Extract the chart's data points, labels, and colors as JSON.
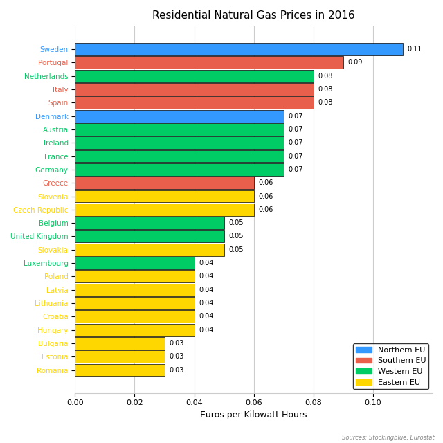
{
  "title": "Residential Natural Gas Prices in 2016",
  "xlabel": "Euros per Kilowatt Hours",
  "source": "Sources: Stockingblue, Eurostat",
  "countries": [
    "Sweden",
    "Portugal",
    "Netherlands",
    "Italy",
    "Spain",
    "Denmark",
    "Austria",
    "Ireland",
    "France",
    "Germany",
    "Greece",
    "Slovenia",
    "Czech Republic",
    "Belgium",
    "United Kingdom",
    "Slovakia",
    "Luxembourg",
    "Poland",
    "Latvia",
    "Lithuania",
    "Croatia",
    "Hungary",
    "Bulgaria",
    "Estonia",
    "Romania"
  ],
  "values": [
    0.11,
    0.09,
    0.08,
    0.08,
    0.08,
    0.07,
    0.07,
    0.07,
    0.07,
    0.07,
    0.06,
    0.06,
    0.06,
    0.05,
    0.05,
    0.05,
    0.04,
    0.04,
    0.04,
    0.04,
    0.04,
    0.04,
    0.03,
    0.03,
    0.03
  ],
  "colors": [
    "#3399FF",
    "#E8604C",
    "#00CC66",
    "#E8604C",
    "#E8604C",
    "#3399FF",
    "#00CC66",
    "#00CC66",
    "#00CC66",
    "#00CC66",
    "#E8604C",
    "#FFD700",
    "#FFD700",
    "#00CC66",
    "#00CC66",
    "#FFD700",
    "#00CC66",
    "#FFD700",
    "#FFD700",
    "#FFD700",
    "#FFD700",
    "#FFD700",
    "#FFD700",
    "#FFD700",
    "#FFD700"
  ],
  "label_colors": [
    "#3399FF",
    "#E8604C",
    "#00CC66",
    "#E8604C",
    "#E8604C",
    "#3399FF",
    "#00CC66",
    "#00CC66",
    "#00CC66",
    "#00CC66",
    "#E8604C",
    "#FFD700",
    "#FFD700",
    "#00CC66",
    "#00CC66",
    "#FFD700",
    "#00CC66",
    "#FFD700",
    "#FFD700",
    "#FFD700",
    "#FFD700",
    "#FFD700",
    "#FFD700",
    "#FFD700",
    "#FFD700"
  ],
  "legend_labels": [
    "Northern EU",
    "Southern EU",
    "Western EU",
    "Eastern EU"
  ],
  "legend_colors": [
    "#3399FF",
    "#E8604C",
    "#00CC66",
    "#FFD700"
  ],
  "xlim": [
    0,
    0.12
  ],
  "xticks": [
    0.0,
    0.02,
    0.04,
    0.06,
    0.08,
    0.1
  ],
  "bar_height": 0.92,
  "background_color": "#FFFFFF",
  "grid_color": "#CCCCCC"
}
